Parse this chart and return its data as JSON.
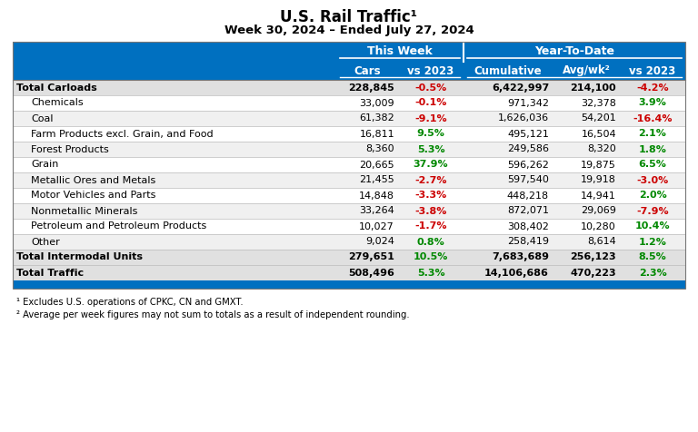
{
  "title": "U.S. Rail Traffic¹",
  "subtitle": "Week 30, 2024 – Ended July 27, 2024",
  "header_group1": "This Week",
  "header_group2": "Year-To-Date",
  "col_headers": [
    "Cars",
    "vs 2023",
    "Cumulative",
    "Avg/wk²",
    "vs 2023"
  ],
  "rows": [
    {
      "label": "Total Carloads",
      "bold": true,
      "indent": false,
      "cars": "228,845",
      "vs2023_tw": "-0.5%",
      "vs2023_tw_color": "red",
      "cumulative": "6,422,997",
      "avgwk": "214,100",
      "vs2023_ytd": "-4.2%",
      "vs2023_ytd_color": "red",
      "row_color": "#e0e0e0"
    },
    {
      "label": "Chemicals",
      "bold": false,
      "indent": true,
      "cars": "33,009",
      "vs2023_tw": "-0.1%",
      "vs2023_tw_color": "red",
      "cumulative": "971,342",
      "avgwk": "32,378",
      "vs2023_ytd": "3.9%",
      "vs2023_ytd_color": "green",
      "row_color": "#ffffff"
    },
    {
      "label": "Coal",
      "bold": false,
      "indent": true,
      "cars": "61,382",
      "vs2023_tw": "-9.1%",
      "vs2023_tw_color": "red",
      "cumulative": "1,626,036",
      "avgwk": "54,201",
      "vs2023_ytd": "-16.4%",
      "vs2023_ytd_color": "red",
      "row_color": "#f0f0f0"
    },
    {
      "label": "Farm Products excl. Grain, and Food",
      "bold": false,
      "indent": true,
      "cars": "16,811",
      "vs2023_tw": "9.5%",
      "vs2023_tw_color": "green",
      "cumulative": "495,121",
      "avgwk": "16,504",
      "vs2023_ytd": "2.1%",
      "vs2023_ytd_color": "green",
      "row_color": "#ffffff"
    },
    {
      "label": "Forest Products",
      "bold": false,
      "indent": true,
      "cars": "8,360",
      "vs2023_tw": "5.3%",
      "vs2023_tw_color": "green",
      "cumulative": "249,586",
      "avgwk": "8,320",
      "vs2023_ytd": "1.8%",
      "vs2023_ytd_color": "green",
      "row_color": "#f0f0f0"
    },
    {
      "label": "Grain",
      "bold": false,
      "indent": true,
      "cars": "20,665",
      "vs2023_tw": "37.9%",
      "vs2023_tw_color": "green",
      "cumulative": "596,262",
      "avgwk": "19,875",
      "vs2023_ytd": "6.5%",
      "vs2023_ytd_color": "green",
      "row_color": "#ffffff"
    },
    {
      "label": "Metallic Ores and Metals",
      "bold": false,
      "indent": true,
      "cars": "21,455",
      "vs2023_tw": "-2.7%",
      "vs2023_tw_color": "red",
      "cumulative": "597,540",
      "avgwk": "19,918",
      "vs2023_ytd": "-3.0%",
      "vs2023_ytd_color": "red",
      "row_color": "#f0f0f0"
    },
    {
      "label": "Motor Vehicles and Parts",
      "bold": false,
      "indent": true,
      "cars": "14,848",
      "vs2023_tw": "-3.3%",
      "vs2023_tw_color": "red",
      "cumulative": "448,218",
      "avgwk": "14,941",
      "vs2023_ytd": "2.0%",
      "vs2023_ytd_color": "green",
      "row_color": "#ffffff"
    },
    {
      "label": "Nonmetallic Minerals",
      "bold": false,
      "indent": true,
      "cars": "33,264",
      "vs2023_tw": "-3.8%",
      "vs2023_tw_color": "red",
      "cumulative": "872,071",
      "avgwk": "29,069",
      "vs2023_ytd": "-7.9%",
      "vs2023_ytd_color": "red",
      "row_color": "#f0f0f0"
    },
    {
      "label": "Petroleum and Petroleum Products",
      "bold": false,
      "indent": true,
      "cars": "10,027",
      "vs2023_tw": "-1.7%",
      "vs2023_tw_color": "red",
      "cumulative": "308,402",
      "avgwk": "10,280",
      "vs2023_ytd": "10.4%",
      "vs2023_ytd_color": "green",
      "row_color": "#ffffff"
    },
    {
      "label": "Other",
      "bold": false,
      "indent": true,
      "cars": "9,024",
      "vs2023_tw": "0.8%",
      "vs2023_tw_color": "green",
      "cumulative": "258,419",
      "avgwk": "8,614",
      "vs2023_ytd": "1.2%",
      "vs2023_ytd_color": "green",
      "row_color": "#f0f0f0"
    },
    {
      "label": "Total Intermodal Units",
      "bold": true,
      "indent": false,
      "cars": "279,651",
      "vs2023_tw": "10.5%",
      "vs2023_tw_color": "green",
      "cumulative": "7,683,689",
      "avgwk": "256,123",
      "vs2023_ytd": "8.5%",
      "vs2023_ytd_color": "green",
      "row_color": "#e0e0e0"
    },
    {
      "label": "Total Traffic",
      "bold": true,
      "indent": false,
      "cars": "508,496",
      "vs2023_tw": "5.3%",
      "vs2023_tw_color": "green",
      "cumulative": "14,106,686",
      "avgwk": "470,223",
      "vs2023_ytd": "2.3%",
      "vs2023_ytd_color": "green",
      "row_color": "#e0e0e0"
    }
  ],
  "footnote1": "¹ Excludes U.S. operations of CPKC, CN and GMXT.",
  "footnote2": "² Average per week figures may not sum to totals as a result of independent rounding.",
  "header_bg_color": "#0070C0",
  "header_text_color": "#ffffff",
  "red_color": "#cc0000",
  "green_color": "#008800",
  "fig_w": 7.68,
  "fig_h": 4.76,
  "dpi": 100
}
